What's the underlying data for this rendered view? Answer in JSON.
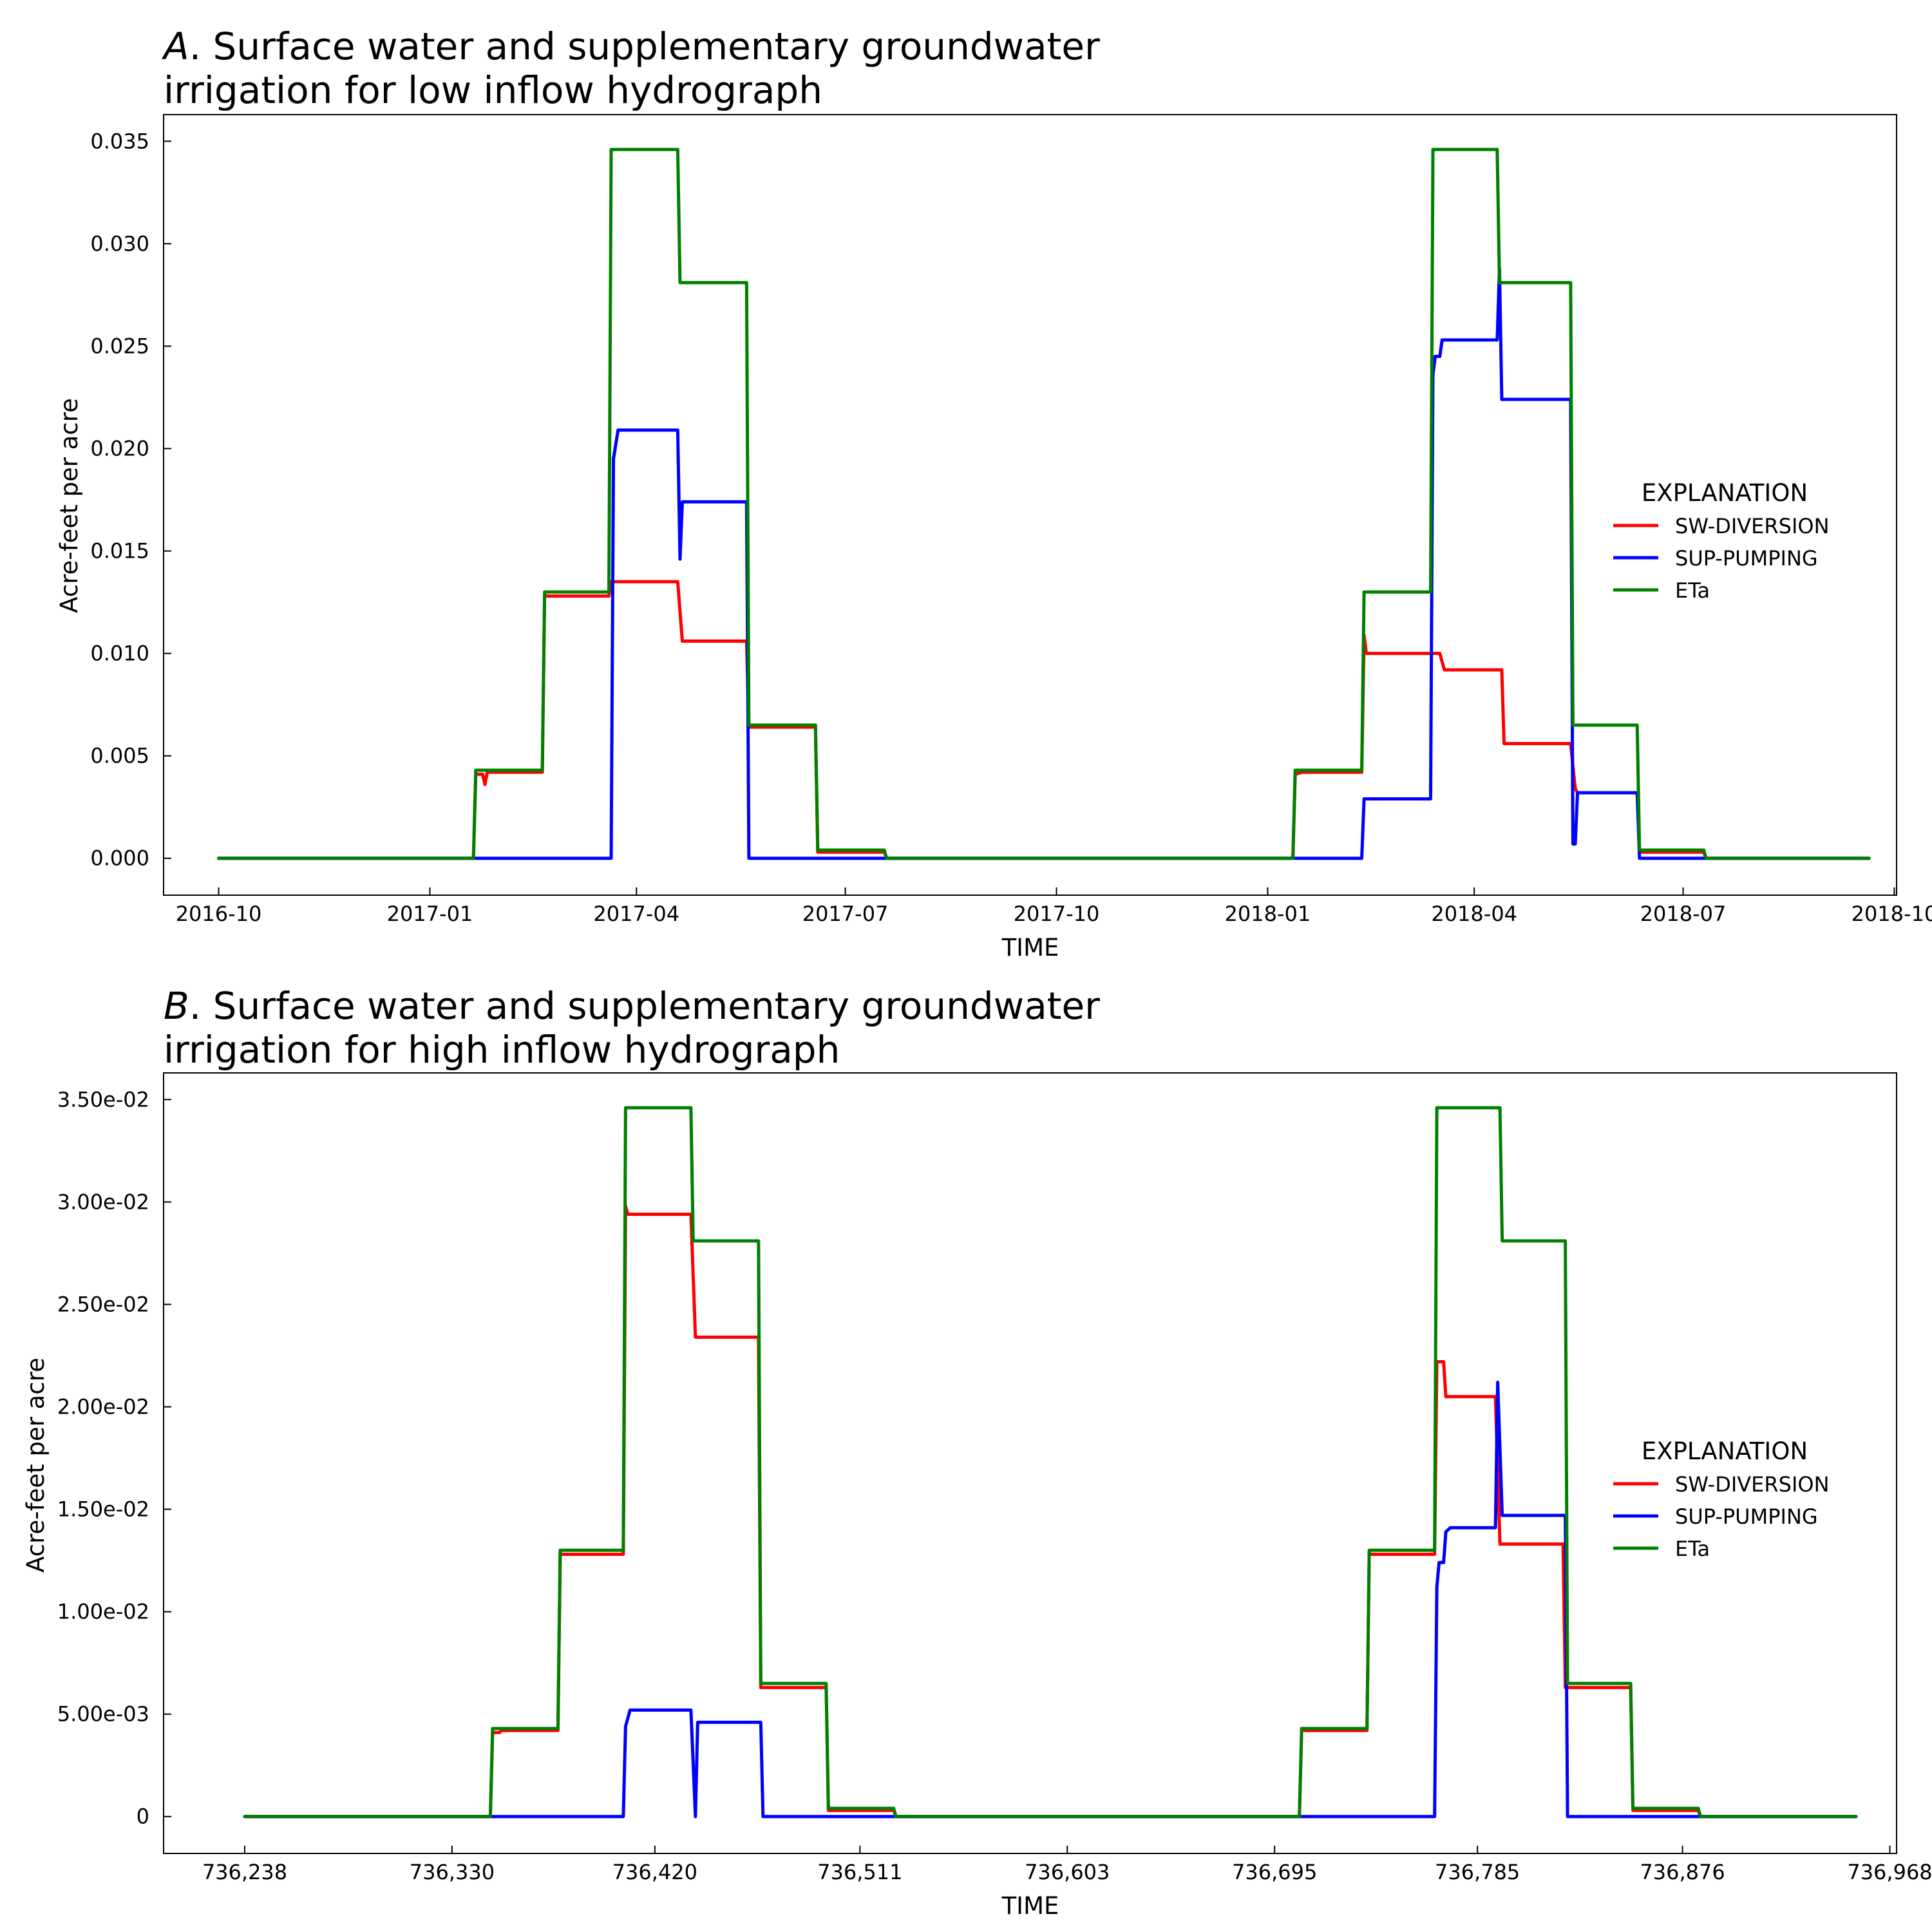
{
  "chart_data": [
    {
      "type": "line",
      "title_italic": "A",
      "title_line1": ". Surface water and supplementary groundwater",
      "title_line2": "irrigation for low inflow hydrograph",
      "xlabel": "TIME",
      "ylabel": "Acre-feet per acre",
      "x_ticks": [
        "2016-10",
        "2017-01",
        "2017-04",
        "2017-07",
        "2017-10",
        "2018-01",
        "2018-04",
        "2018-07",
        "2018-10"
      ],
      "y_ticks": [
        "0.000",
        "0.005",
        "0.010",
        "0.015",
        "0.020",
        "0.025",
        "0.030",
        "0.035"
      ],
      "xlim": [
        "2016-09-07",
        "2018-10-02"
      ],
      "ylim": [
        -0.0018,
        0.0363
      ],
      "grid": false,
      "legend_title": "EXPLANATION",
      "legend_position": "center-right",
      "series": [
        {
          "name": "SW-DIVERSION",
          "color": "#ff0000",
          "points": [
            [
              "2016-10-01",
              0
            ],
            [
              "2017-01-20",
              0
            ],
            [
              "2017-01-21",
              0.0041
            ],
            [
              "2017-01-24",
              0.0041
            ],
            [
              "2017-01-25",
              0.0036
            ],
            [
              "2017-01-26",
              0.0042
            ],
            [
              "2017-02-19",
              0.0042
            ],
            [
              "2017-02-20",
              0.0128
            ],
            [
              "2017-03-20",
              0.0128
            ],
            [
              "2017-03-21",
              0.0135
            ],
            [
              "2017-04-19",
              0.0135
            ],
            [
              "2017-04-21",
              0.0106
            ],
            [
              "2017-05-19",
              0.0106
            ],
            [
              "2017-05-20",
              0.0064
            ],
            [
              "2017-06-18",
              0.0064
            ],
            [
              "2017-06-19",
              0.0003
            ],
            [
              "2017-07-18",
              0.0003
            ],
            [
              "2017-07-19",
              0
            ],
            [
              "2018-01-12",
              0
            ],
            [
              "2018-01-13",
              0.0041
            ],
            [
              "2018-01-16",
              0.0042
            ],
            [
              "2018-02-11",
              0.0042
            ],
            [
              "2018-02-12",
              0.0109
            ],
            [
              "2018-02-13",
              0.01
            ],
            [
              "2018-03-17",
              0.01
            ],
            [
              "2018-03-19",
              0.0092
            ],
            [
              "2018-04-13",
              0.0092
            ],
            [
              "2018-04-14",
              0.0056
            ],
            [
              "2018-05-13",
              0.0056
            ],
            [
              "2018-05-15",
              0.0034
            ],
            [
              "2018-05-16",
              0.0032
            ],
            [
              "2018-06-11",
              0.0032
            ],
            [
              "2018-06-12",
              0.0003
            ],
            [
              "2018-07-10",
              0.0003
            ],
            [
              "2018-07-11",
              0
            ],
            [
              "2018-09-20",
              0
            ]
          ]
        },
        {
          "name": "SUP-PUMPING",
          "color": "#0000ff",
          "points": [
            [
              "2016-10-01",
              0
            ],
            [
              "2017-03-21",
              0
            ],
            [
              "2017-03-22",
              0.0195
            ],
            [
              "2017-03-24",
              0.0209
            ],
            [
              "2017-04-19",
              0.0209
            ],
            [
              "2017-04-20",
              0.0146
            ],
            [
              "2017-04-21",
              0.0174
            ],
            [
              "2017-05-19",
              0.0174
            ],
            [
              "2017-05-20",
              0
            ],
            [
              "2018-02-11",
              0
            ],
            [
              "2018-02-12",
              0.0029
            ],
            [
              "2018-03-13",
              0.0029
            ],
            [
              "2018-03-14",
              0.0236
            ],
            [
              "2018-03-15",
              0.0245
            ],
            [
              "2018-03-17",
              0.0245
            ],
            [
              "2018-03-18",
              0.0253
            ],
            [
              "2018-04-11",
              0.0253
            ],
            [
              "2018-04-12",
              0.0288
            ],
            [
              "2018-04-13",
              0.0224
            ],
            [
              "2018-05-13",
              0.0224
            ],
            [
              "2018-05-14",
              0.0007
            ],
            [
              "2018-05-15",
              0.0007
            ],
            [
              "2018-05-16",
              0.0032
            ],
            [
              "2018-06-11",
              0.0032
            ],
            [
              "2018-06-12",
              0
            ],
            [
              "2018-09-20",
              0
            ]
          ]
        },
        {
          "name": "ETa",
          "color": "#008000",
          "points": [
            [
              "2016-10-01",
              0
            ],
            [
              "2017-01-20",
              0
            ],
            [
              "2017-01-21",
              0.0043
            ],
            [
              "2017-02-19",
              0.0043
            ],
            [
              "2017-02-20",
              0.013
            ],
            [
              "2017-03-20",
              0.013
            ],
            [
              "2017-03-21",
              0.0346
            ],
            [
              "2017-04-19",
              0.0346
            ],
            [
              "2017-04-20",
              0.0281
            ],
            [
              "2017-05-19",
              0.0281
            ],
            [
              "2017-05-20",
              0.0065
            ],
            [
              "2017-06-18",
              0.0065
            ],
            [
              "2017-06-19",
              0.0004
            ],
            [
              "2017-07-18",
              0.0004
            ],
            [
              "2017-07-19",
              0
            ],
            [
              "2018-01-12",
              0
            ],
            [
              "2018-01-13",
              0.0043
            ],
            [
              "2018-02-11",
              0.0043
            ],
            [
              "2018-02-12",
              0.013
            ],
            [
              "2018-03-13",
              0.013
            ],
            [
              "2018-03-14",
              0.0346
            ],
            [
              "2018-04-11",
              0.0346
            ],
            [
              "2018-04-12",
              0.0281
            ],
            [
              "2018-05-13",
              0.0281
            ],
            [
              "2018-05-14",
              0.0065
            ],
            [
              "2018-06-11",
              0.0065
            ],
            [
              "2018-06-12",
              0.0004
            ],
            [
              "2018-07-10",
              0.0004
            ],
            [
              "2018-07-11",
              0
            ],
            [
              "2018-09-20",
              0
            ]
          ]
        }
      ]
    },
    {
      "type": "line",
      "title_italic": "B",
      "title_line1": ". Surface water and supplementary groundwater",
      "title_line2": "irrigation for high inflow hydrograph",
      "xlabel": "TIME",
      "ylabel": "Acre-feet per acre",
      "x_ticks": [
        "736,238",
        "736,330",
        "736,420",
        "736,511",
        "736,603",
        "736,695",
        "736,785",
        "736,876",
        "736,968"
      ],
      "y_ticks": [
        "0",
        "5.00e-03",
        "1.00e-02",
        "1.50e-02",
        "2.00e-02",
        "2.50e-02",
        "3.00e-02",
        "3.50e-02"
      ],
      "xlim": [
        736202,
        736971
      ],
      "ylim": [
        -0.0018,
        0.0363
      ],
      "grid": false,
      "legend_title": "EXPLANATION",
      "legend_position": "center-right",
      "series": [
        {
          "name": "SW-DIVERSION",
          "color": "#ff0000",
          "points": [
            [
              736238,
              0
            ],
            [
              736347,
              0
            ],
            [
              736348,
              0.0041
            ],
            [
              736351,
              0.0041
            ],
            [
              736352,
              0.0042
            ],
            [
              736377,
              0.0042
            ],
            [
              736378,
              0.0128
            ],
            [
              736406,
              0.0128
            ],
            [
              736407,
              0.0298
            ],
            [
              736408,
              0.0294
            ],
            [
              736436,
              0.0294
            ],
            [
              736438,
              0.0234
            ],
            [
              736466,
              0.0234
            ],
            [
              736467,
              0.0063
            ],
            [
              736496,
              0.0063
            ],
            [
              736497,
              0.0003
            ],
            [
              736526,
              0.0003
            ],
            [
              736527,
              0
            ],
            [
              736706,
              0
            ],
            [
              736707,
              0.0042
            ],
            [
              736736,
              0.0042
            ],
            [
              736737,
              0.0128
            ],
            [
              736766,
              0.0128
            ],
            [
              736767,
              0.0222
            ],
            [
              736770,
              0.0222
            ],
            [
              736771,
              0.0205
            ],
            [
              736793,
              0.0205
            ],
            [
              736795,
              0.0133
            ],
            [
              736823,
              0.0133
            ],
            [
              736824,
              0.0063
            ],
            [
              736853,
              0.0063
            ],
            [
              736854,
              0.0003
            ],
            [
              736883,
              0.0003
            ],
            [
              736884,
              0
            ],
            [
              736953,
              0
            ]
          ]
        },
        {
          "name": "SUP-PUMPING",
          "color": "#0000ff",
          "points": [
            [
              736238,
              0
            ],
            [
              736406,
              0
            ],
            [
              736407,
              0.0044
            ],
            [
              736409,
              0.0052
            ],
            [
              736436,
              0.0052
            ],
            [
              736438,
              0
            ],
            [
              736439,
              0.0046
            ],
            [
              736467,
              0.0046
            ],
            [
              736468,
              0
            ],
            [
              736766,
              0
            ],
            [
              736767,
              0.0112
            ],
            [
              736768,
              0.0124
            ],
            [
              736770,
              0.0124
            ],
            [
              736771,
              0.0139
            ],
            [
              736773,
              0.0141
            ],
            [
              736793,
              0.0141
            ],
            [
              736794,
              0.0212
            ],
            [
              736796,
              0.0147
            ],
            [
              736824,
              0.0147
            ],
            [
              736825,
              0
            ],
            [
              736953,
              0
            ]
          ]
        },
        {
          "name": "ETa",
          "color": "#008000",
          "points": [
            [
              736238,
              0
            ],
            [
              736347,
              0
            ],
            [
              736348,
              0.0043
            ],
            [
              736377,
              0.0043
            ],
            [
              736378,
              0.013
            ],
            [
              736406,
              0.013
            ],
            [
              736407,
              0.0346
            ],
            [
              736436,
              0.0346
            ],
            [
              736437,
              0.0281
            ],
            [
              736466,
              0.0281
            ],
            [
              736467,
              0.0065
            ],
            [
              736496,
              0.0065
            ],
            [
              736497,
              0.0004
            ],
            [
              736526,
              0.0004
            ],
            [
              736527,
              0
            ],
            [
              736706,
              0
            ],
            [
              736707,
              0.0043
            ],
            [
              736736,
              0.0043
            ],
            [
              736737,
              0.013
            ],
            [
              736766,
              0.013
            ],
            [
              736767,
              0.0346
            ],
            [
              736795,
              0.0346
            ],
            [
              736796,
              0.0281
            ],
            [
              736824,
              0.0281
            ],
            [
              736825,
              0.0065
            ],
            [
              736853,
              0.0065
            ],
            [
              736854,
              0.0004
            ],
            [
              736883,
              0.0004
            ],
            [
              736884,
              0
            ],
            [
              736953,
              0
            ]
          ]
        }
      ]
    }
  ]
}
